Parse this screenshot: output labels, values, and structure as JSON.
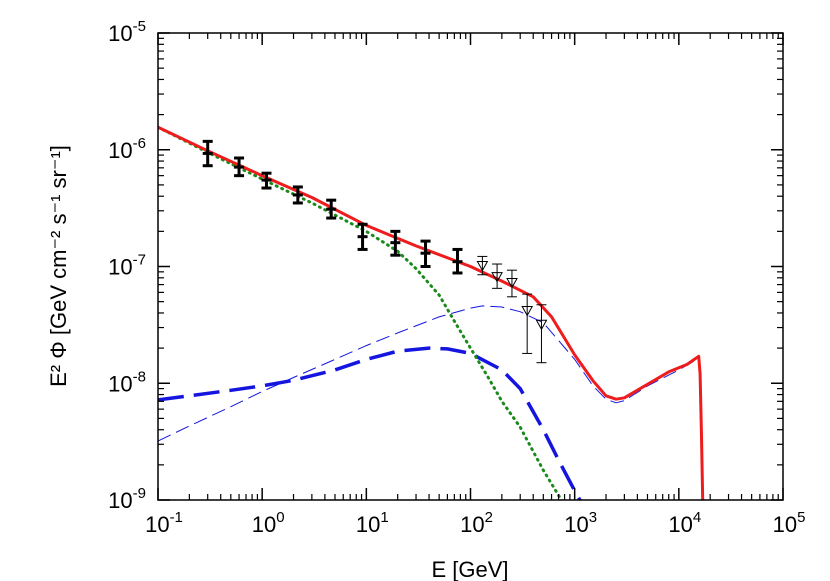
{
  "chart_data": {
    "type": "line",
    "title": "",
    "xlabel": "E [GeV]",
    "ylabel": "E² Φ [GeV cm⁻² s⁻¹ sr⁻¹]",
    "xscale": "log",
    "yscale": "log",
    "xlim": [
      0.1,
      100000
    ],
    "ylim": [
      1e-09,
      1e-05
    ],
    "grid": false,
    "x_ticks": [
      {
        "base": "10",
        "exp": "-1",
        "value": 0.1
      },
      {
        "base": "10",
        "exp": "0",
        "value": 1
      },
      {
        "base": "10",
        "exp": "1",
        "value": 10
      },
      {
        "base": "10",
        "exp": "2",
        "value": 100
      },
      {
        "base": "10",
        "exp": "3",
        "value": 1000
      },
      {
        "base": "10",
        "exp": "4",
        "value": 10000
      },
      {
        "base": "10",
        "exp": "5",
        "value": 100000
      }
    ],
    "y_ticks": [
      {
        "base": "10",
        "exp": "-9",
        "value": 1e-09
      },
      {
        "base": "10",
        "exp": "-8",
        "value": 1e-08
      },
      {
        "base": "10",
        "exp": "-7",
        "value": 1e-07
      },
      {
        "base": "10",
        "exp": "-6",
        "value": 1e-06
      },
      {
        "base": "10",
        "exp": "-5",
        "value": 1e-05
      }
    ],
    "series": [
      {
        "style": "thin-dashed",
        "color": "#1515e0",
        "points": [
          [
            0.1,
            3.2e-09
          ],
          [
            0.2,
            4.3e-09
          ],
          [
            0.5,
            6.3e-09
          ],
          [
            1,
            8.5e-09
          ],
          [
            2,
            1.12e-08
          ],
          [
            5,
            1.6e-08
          ],
          [
            10,
            2.1e-08
          ],
          [
            20,
            2.7e-08
          ],
          [
            50,
            3.7e-08
          ],
          [
            100,
            4.4e-08
          ],
          [
            130,
            4.6e-08
          ],
          [
            200,
            4.5e-08
          ],
          [
            300,
            4.1e-08
          ],
          [
            500,
            3.3e-08
          ],
          [
            1000,
            1.6e-08
          ],
          [
            1500,
            9.5e-09
          ],
          [
            2000,
            7.3e-09
          ],
          [
            2500,
            6.8e-09
          ],
          [
            3000,
            7.1e-09
          ],
          [
            5000,
            9.5e-09
          ],
          [
            10000,
            1.3e-08
          ],
          [
            15000,
            1.6e-08
          ]
        ]
      },
      {
        "style": "thick-dashed",
        "color": "#1515e0",
        "points": [
          [
            0.1,
            7.2e-09
          ],
          [
            0.2,
            7.8e-09
          ],
          [
            0.5,
            8.7e-09
          ],
          [
            1,
            9.5e-09
          ],
          [
            2,
            1.06e-08
          ],
          [
            5,
            1.3e-08
          ],
          [
            10,
            1.6e-08
          ],
          [
            20,
            1.88e-08
          ],
          [
            40,
            2e-08
          ],
          [
            60,
            1.97e-08
          ],
          [
            100,
            1.8e-08
          ],
          [
            200,
            1.3e-08
          ],
          [
            300,
            9e-09
          ],
          [
            500,
            4e-09
          ],
          [
            700,
            2.2e-09
          ],
          [
            1000,
            1.2e-09
          ],
          [
            1200,
            9e-10
          ]
        ]
      },
      {
        "style": "dotted",
        "color": "#1a8a1a",
        "points": [
          [
            0.1,
            1.56e-06
          ],
          [
            0.3,
            9.5e-07
          ],
          [
            1,
            5.6e-07
          ],
          [
            3,
            3.5e-07
          ],
          [
            10,
            2e-07
          ],
          [
            20,
            1.35e-07
          ],
          [
            30,
            9.6e-08
          ],
          [
            50,
            5.7e-08
          ],
          [
            70,
            3.4e-08
          ],
          [
            100,
            2e-08
          ],
          [
            150,
            1.1e-08
          ],
          [
            200,
            7e-09
          ],
          [
            300,
            4.2e-09
          ],
          [
            500,
            1.8e-09
          ],
          [
            800,
            9e-10
          ]
        ]
      },
      {
        "style": "solid",
        "color": "#ee1c1c",
        "points": [
          [
            0.1,
            1.56e-06
          ],
          [
            0.3,
            9.8e-07
          ],
          [
            1,
            6e-07
          ],
          [
            3,
            3.9e-07
          ],
          [
            10,
            2.25e-07
          ],
          [
            30,
            1.5e-07
          ],
          [
            100,
            1e-07
          ],
          [
            200,
            7.5e-08
          ],
          [
            400,
            5.5e-08
          ],
          [
            600,
            3.7e-08
          ],
          [
            1000,
            1.75e-08
          ],
          [
            1500,
            1.05e-08
          ],
          [
            2000,
            7.8e-09
          ],
          [
            2500,
            7.3e-09
          ],
          [
            3000,
            7.5e-09
          ],
          [
            5000,
            9.8e-09
          ],
          [
            8000,
            1.25e-08
          ],
          [
            12000,
            1.45e-08
          ],
          [
            15500,
            1.7e-08
          ],
          [
            16000,
            1.2e-08
          ],
          [
            16500,
            3.5e-09
          ],
          [
            17000,
            9e-10
          ]
        ]
      }
    ],
    "data_points": [
      {
        "x": 0.3,
        "y": 9.3e-07,
        "ylo": 7.3e-07,
        "yhi": 1.18e-06
      },
      {
        "x": 0.6,
        "y": 7.1e-07,
        "ylo": 6e-07,
        "yhi": 8.5e-07
      },
      {
        "x": 1.1,
        "y": 5.5e-07,
        "ylo": 4.7e-07,
        "yhi": 6.3e-07
      },
      {
        "x": 2.2,
        "y": 4.1e-07,
        "ylo": 3.5e-07,
        "yhi": 4.8e-07
      },
      {
        "x": 4.6,
        "y": 3.1e-07,
        "ylo": 2.6e-07,
        "yhi": 3.7e-07
      },
      {
        "x": 9.2,
        "y": 1.8e-07,
        "ylo": 1.4e-07,
        "yhi": 2.3e-07
      },
      {
        "x": 19,
        "y": 1.6e-07,
        "ylo": 1.25e-07,
        "yhi": 2e-07
      },
      {
        "x": 37,
        "y": 1.3e-07,
        "ylo": 1e-07,
        "yhi": 1.65e-07
      },
      {
        "x": 75,
        "y": 1.1e-07,
        "ylo": 8.8e-08,
        "yhi": 1.4e-07
      }
    ],
    "upper_limits": [
      {
        "x": 130,
        "y": 1.02e-07,
        "ylo": 8.5e-08,
        "yhi": 1.22e-07
      },
      {
        "x": 180,
        "y": 8.2e-08,
        "ylo": 6.5e-08,
        "yhi": 1.05e-07
      },
      {
        "x": 250,
        "y": 7.3e-08,
        "ylo": 5.5e-08,
        "yhi": 9.3e-08
      },
      {
        "x": 350,
        "y": 4.2e-08,
        "ylo": 1.8e-08,
        "yhi": 5.8e-08
      },
      {
        "x": 480,
        "y": 3.2e-08,
        "ylo": 1.5e-08,
        "yhi": 4.7e-08
      }
    ]
  }
}
